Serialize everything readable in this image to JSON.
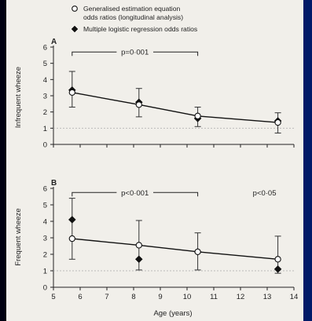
{
  "colors": {
    "paper": "#f1efea",
    "ink": "#222222",
    "background": "#000020"
  },
  "chart_data": {
    "type": "scatter",
    "legend": {
      "placement": "top",
      "items": [
        {
          "marker": "open-circle",
          "line1": "Generalised estimation equation",
          "line2": "odds ratios (longitudinal analysis)"
        },
        {
          "marker": "filled-diamond",
          "line1": "Multiple logistic regression odds ratios",
          "line2": ""
        }
      ]
    },
    "xlabel": "Age (years)",
    "xlim": [
      5,
      14
    ],
    "x_ticks": [
      5,
      6,
      7,
      8,
      9,
      10,
      11,
      12,
      13,
      14
    ],
    "panels": [
      {
        "panel_label": "A",
        "ylabel": "Infrequent wheeze",
        "ylim": [
          0,
          6
        ],
        "y_ticks": [
          0,
          1,
          2,
          3,
          4,
          5,
          6
        ],
        "reference_line": 1,
        "x": [
          5.7,
          8.2,
          10.4,
          13.4
        ],
        "gee": {
          "values": [
            3.2,
            2.45,
            1.75,
            1.35
          ],
          "lower": [
            2.3,
            1.7,
            1.1,
            0.7
          ],
          "upper": [
            4.5,
            3.45,
            2.3,
            1.95
          ]
        },
        "logistic": {
          "x": [
            5.7,
            8.2,
            10.4,
            13.4
          ],
          "values": [
            3.35,
            2.6,
            1.6,
            1.45
          ]
        },
        "trend": {
          "x": [
            5.7,
            8.2,
            10.4,
            13.4
          ],
          "values": [
            3.2,
            2.45,
            1.75,
            1.35
          ]
        },
        "annotations": [
          {
            "text": "p=0·001",
            "x_from": 5.7,
            "x_to": 10.4,
            "y": 5.7
          }
        ]
      },
      {
        "panel_label": "B",
        "ylabel": "Frequent wheeze",
        "ylim": [
          0,
          6
        ],
        "y_ticks": [
          0,
          1,
          2,
          3,
          4,
          5,
          6
        ],
        "reference_line": 1,
        "x": [
          5.7,
          8.2,
          10.4,
          13.4
        ],
        "gee": {
          "values": [
            2.95,
            2.55,
            2.15,
            1.7
          ],
          "lower": [
            1.7,
            1.05,
            1.05,
            0.85
          ],
          "upper": [
            5.4,
            4.05,
            3.3,
            3.1
          ]
        },
        "logistic": {
          "x": [
            5.7,
            8.2,
            10.4,
            13.4
          ],
          "values": [
            4.1,
            1.7,
            2.15,
            1.1
          ]
        },
        "trend": {
          "x": [
            5.7,
            8.2,
            10.4,
            13.4
          ],
          "values": [
            2.95,
            2.55,
            2.15,
            1.7
          ]
        },
        "annotations": [
          {
            "text": "p<0·001",
            "x_from": 5.7,
            "x_to": 10.4,
            "y": 5.75
          },
          {
            "text": "p<0·05",
            "x": 12.9,
            "y": 5.75
          }
        ]
      }
    ]
  }
}
